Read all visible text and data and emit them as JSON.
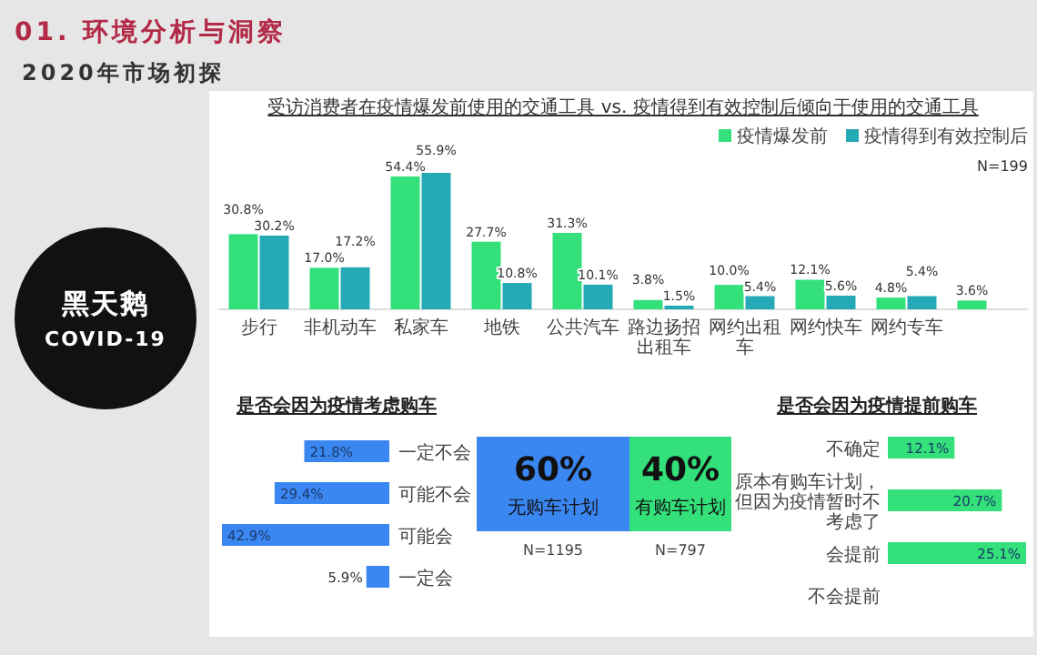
{
  "chart_data": [
    {
      "type": "other",
      "title": "01. 环境分析与洞察",
      "subtitle": "2020年市场初探",
      "annotations": [
        "黑天鹅",
        "COVID-19"
      ]
    },
    {
      "type": "bar",
      "title": "受访消费者在疫情爆发前使用的交通工具 vs. 疫情得到有效控制后倾向于使用的交通工具",
      "categories": [
        "步行",
        "非机动车",
        "私家车",
        "地铁",
        "公共汽车",
        "路边扬招出租车",
        "网约出租车",
        "网约快车",
        "网约专车",
        null
      ],
      "legend": "top right",
      "annotations": [
        "N=199"
      ],
      "series": [
        {
          "name": "疫情爆发前",
          "color": "#33e07a",
          "values": [
            30.8,
            17.0,
            54.4,
            27.7,
            31.3,
            3.8,
            10.0,
            12.1,
            4.8,
            3.6
          ],
          "value_labels": [
            "30.8%",
            "17.0%",
            "54.4%",
            "27.7%",
            "31.3%",
            "3.8%",
            "10.0%",
            "12.1%",
            "4.8%",
            "3.6%"
          ]
        },
        {
          "name": "疫情得到有效控制后",
          "color": "#25a9b6",
          "values": [
            30.2,
            17.2,
            55.9,
            10.8,
            10.1,
            1.5,
            5.4,
            5.6,
            5.4,
            null
          ],
          "value_labels": [
            "30.2%",
            "17.2%",
            "55.9%",
            "10.8%",
            "10.1%",
            "1.5%",
            "5.4%",
            "5.6%",
            "5.4%",
            null
          ]
        }
      ]
    },
    {
      "type": "bar",
      "orientation": "horizontal",
      "title": "是否会因为疫情考虑购车",
      "categories": [
        "一定不会",
        "可能不会",
        "可能会",
        "一定会"
      ],
      "color": "#3b87f2",
      "values": [
        21.8,
        29.4,
        42.9,
        5.9
      ],
      "value_labels": [
        "21.8%",
        "29.4%",
        "42.9%",
        "5.9%"
      ]
    },
    {
      "type": "other",
      "categories": [
        "无购车计划",
        "有购车计划"
      ],
      "values": [
        60,
        40
      ],
      "value_labels": [
        "60%",
        "40%"
      ],
      "colors": [
        "#3b87f2",
        "#33e07a"
      ],
      "annotations": [
        "N=1195",
        "N=797"
      ]
    },
    {
      "type": "bar",
      "orientation": "horizontal",
      "title": "是否会因为疫情提前购车",
      "categories": [
        "不确定",
        "原本有购车计划，但因为疫情暂时不考虑了",
        "会提前",
        "不会提前"
      ],
      "color": "#33e07a",
      "values": [
        12.1,
        20.7,
        25.1,
        null
      ],
      "value_labels": [
        "12.1%",
        "20.7%",
        "25.1%",
        null
      ]
    }
  ]
}
